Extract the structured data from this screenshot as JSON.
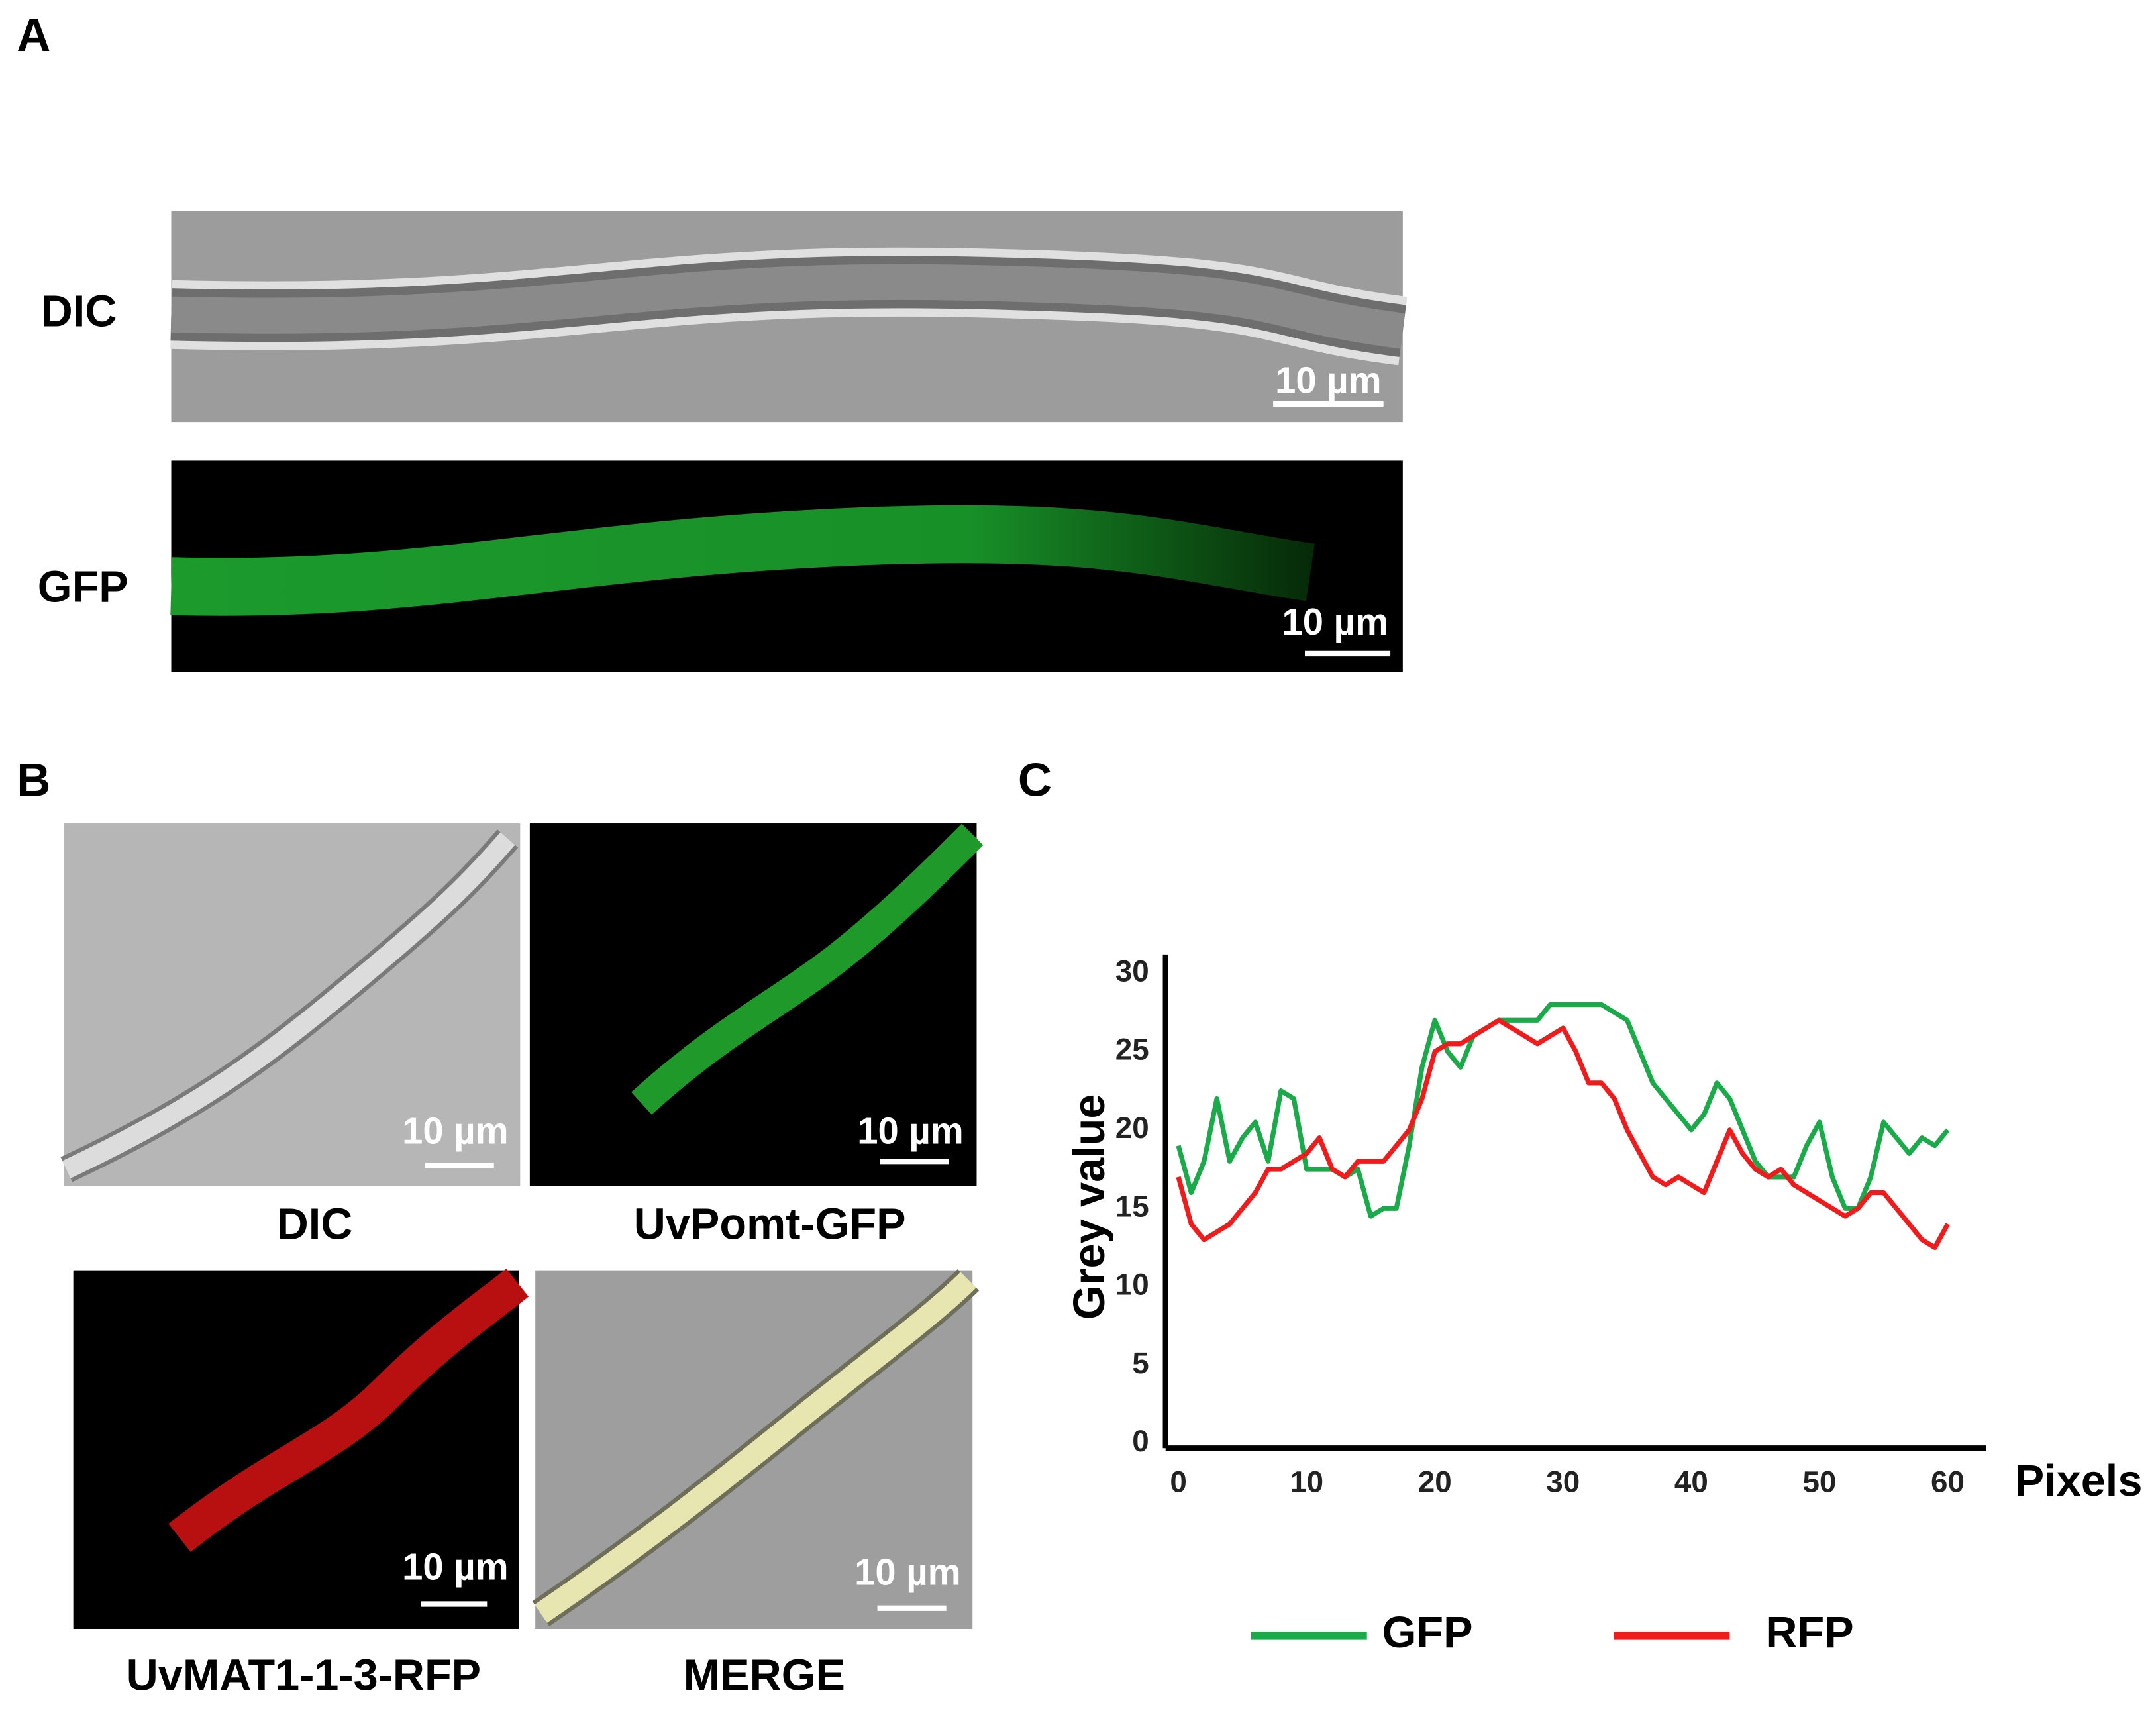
{
  "panels": {
    "A": {
      "label": "A",
      "rows": [
        {
          "label": "DIC",
          "scale_bar": "10 µm"
        },
        {
          "label": "GFP",
          "scale_bar": "10 µm"
        }
      ]
    },
    "B": {
      "label": "B",
      "images": [
        {
          "caption": "DIC",
          "scale_bar": "10 µm"
        },
        {
          "caption": "UvPomt-GFP",
          "scale_bar": "10 µm"
        },
        {
          "caption": "UvMAT1-1-3-RFP",
          "scale_bar": "10 µm"
        },
        {
          "caption": "MERGE",
          "scale_bar": "10 µm"
        }
      ]
    },
    "C": {
      "label": "C"
    }
  },
  "chart_data": {
    "type": "line",
    "x_label": "Pixels",
    "y_label": "Grey value",
    "x": [
      0,
      1,
      2,
      3,
      4,
      5,
      6,
      7,
      8,
      9,
      10,
      11,
      12,
      13,
      14,
      15,
      16,
      17,
      18,
      19,
      20,
      21,
      22,
      23,
      24,
      25,
      26,
      27,
      28,
      29,
      30,
      31,
      32,
      33,
      34,
      35,
      36,
      37,
      38,
      39,
      40,
      41,
      42,
      43,
      44,
      45,
      46,
      47,
      48,
      49,
      50,
      51,
      52,
      53,
      54,
      55,
      56,
      57,
      58,
      59,
      60
    ],
    "series": [
      {
        "name": "GFP",
        "color": "#1aaa4a",
        "values": [
          19,
          16,
          18,
          22,
          18,
          19.5,
          20.5,
          18,
          22.5,
          22,
          17.5,
          17.5,
          17.5,
          17,
          17.5,
          14.5,
          15,
          15,
          19,
          24,
          27,
          25,
          24,
          26,
          26.5,
          27,
          27,
          27,
          27,
          28,
          28,
          28,
          28,
          28,
          27.5,
          27,
          25,
          23,
          22,
          21,
          20,
          21,
          23,
          22,
          20,
          18,
          17,
          17,
          17,
          19,
          20.5,
          17,
          15,
          15,
          17,
          20.5,
          19.5,
          18.5,
          19.5,
          19,
          20
        ]
      },
      {
        "name": "RFP",
        "color": "#ee1c1c",
        "values": [
          17,
          14,
          13,
          13.5,
          14,
          15,
          16,
          17.5,
          17.5,
          18,
          18.5,
          19.5,
          17.5,
          17,
          18,
          18,
          18,
          19,
          20,
          22,
          25,
          25.5,
          25.5,
          26,
          26.5,
          27,
          26.5,
          26,
          25.5,
          26,
          26.5,
          25,
          23,
          23,
          22,
          20,
          18.5,
          17,
          16.5,
          17,
          16.5,
          16,
          18,
          20,
          18.5,
          17.5,
          17,
          17.5,
          16.5,
          16,
          15.5,
          15,
          14.5,
          15,
          16,
          16,
          15,
          14,
          13,
          12.5,
          14
        ]
      }
    ],
    "xlim": [
      -1,
      63
    ],
    "ylim": [
      -0.3,
      31.2
    ],
    "xticks": [
      0,
      10,
      20,
      30,
      40,
      50,
      60
    ],
    "yticks": [
      0,
      5,
      10,
      15,
      20,
      25,
      30
    ]
  }
}
